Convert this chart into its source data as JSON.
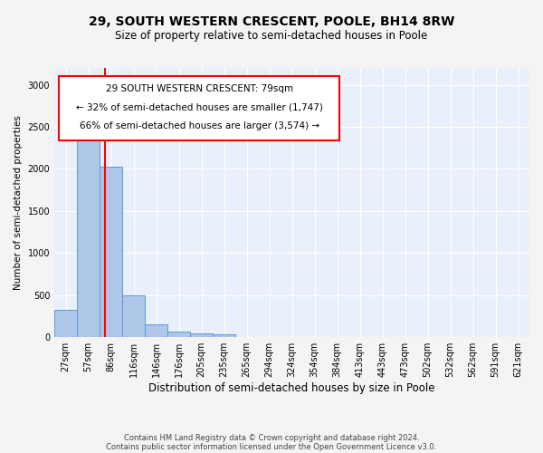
{
  "title1": "29, SOUTH WESTERN CRESCENT, POOLE, BH14 8RW",
  "title2": "Size of property relative to semi-detached houses in Poole",
  "xlabel": "Distribution of semi-detached houses by size in Poole",
  "ylabel": "Number of semi-detached properties",
  "categories": [
    "27sqm",
    "57sqm",
    "86sqm",
    "116sqm",
    "146sqm",
    "176sqm",
    "205sqm",
    "235sqm",
    "265sqm",
    "294sqm",
    "324sqm",
    "354sqm",
    "384sqm",
    "413sqm",
    "443sqm",
    "473sqm",
    "502sqm",
    "532sqm",
    "562sqm",
    "591sqm",
    "621sqm"
  ],
  "values": [
    320,
    2400,
    2030,
    500,
    150,
    70,
    50,
    35,
    0,
    0,
    0,
    0,
    0,
    0,
    0,
    0,
    0,
    0,
    0,
    0,
    0
  ],
  "bar_color": "#aec6e8",
  "bar_edge_color": "#5b9bd5",
  "red_line_x": 1.72,
  "annotation_text1": "29 SOUTH WESTERN CRESCENT: 79sqm",
  "annotation_text2": "← 32% of semi-detached houses are smaller (1,747)",
  "annotation_text3": "66% of semi-detached houses are larger (3,574) →",
  "ylim": [
    0,
    3200
  ],
  "yticks": [
    0,
    500,
    1000,
    1500,
    2000,
    2500,
    3000
  ],
  "footer1": "Contains HM Land Registry data © Crown copyright and database right 2024.",
  "footer2": "Contains public sector information licensed under the Open Government Licence v3.0.",
  "background_color": "#eaf0fb",
  "grid_color": "#ffffff",
  "fig_bg": "#f4f4f4"
}
